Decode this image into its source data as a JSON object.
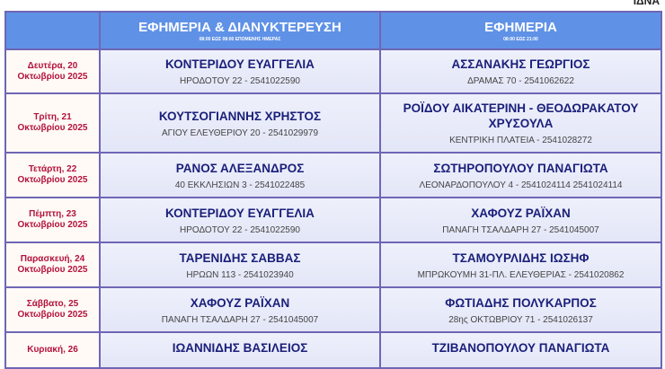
{
  "logo_text": "ΙΔΝΑ",
  "header": {
    "col1": {
      "title": "ΕΦΗΜΕΡΙΑ & ΔΙΑΝΥΚΤΕΡΕΥΣΗ",
      "subtitle": "08:00 ΕΩΣ 08:00 ΕΠΟΜΕΝΗΣ ΗΜΕΡΑΣ"
    },
    "col2": {
      "title": "ΕΦΗΜΕΡΙΑ",
      "subtitle": "08:00 ΕΩΣ 21:00"
    }
  },
  "rows": [
    {
      "day": "Δευτέρα, 20",
      "month": "Οκτωβρίου 2025",
      "n1": "ΚΟΝΤΕΡΙΔΟΥ ΕΥΑΓΓΕΛΙΑ",
      "a1": "ΗΡΟΔΟΤΟΥ 22 - 2541022590",
      "n2": "ΑΣΣΑΝΑΚΗΣ ΓΕΩΡΓΙΟΣ",
      "a2": "ΔΡΑΜΑΣ 70 - 2541062622"
    },
    {
      "day": "Τρίτη, 21",
      "month": "Οκτωβρίου 2025",
      "n1": "ΚΟΥΤΣΟΓΙΑΝΝΗΣ ΧΡΗΣΤΟΣ",
      "a1": "ΑΓΙΟΥ ΕΛΕΥΘΕΡΙΟΥ 20 - 2541029979",
      "n2": "ΡΟΪΔΟΥ ΑΙΚΑΤΕΡΙΝΗ - ΘΕΟΔΩΡΑΚΑΤΟΥ ΧΡΥΣΟΥΛΑ",
      "a2": "ΚΕΝΤΡΙΚΗ ΠΛΑΤΕΙΑ - 2541028272"
    },
    {
      "day": "Τετάρτη, 22",
      "month": "Οκτωβρίου 2025",
      "n1": "ΡΑΝΟΣ ΑΛΕΞΑΝΔΡΟΣ",
      "a1": "40 ΕΚΚΛΗΣΙΩΝ 3 - 2541022485",
      "n2": "ΣΩΤΗΡΟΠΟΥΛΟΥ ΠΑΝΑΓΙΩΤΑ",
      "a2": "ΛΕΟΝΑΡΔΟΠΟΥΛΟΥ 4 - 2541024114 2541024114"
    },
    {
      "day": "Πέμπτη, 23",
      "month": "Οκτωβρίου 2025",
      "n1": "ΚΟΝΤΕΡΙΔΟΥ ΕΥΑΓΓΕΛΙΑ",
      "a1": "ΗΡΟΔΟΤΟΥ 22 - 2541022590",
      "n2": "ΧΑΦΟΥΖ ΡΑΪΧΑΝ",
      "a2": "ΠΑΝΑΓΗ ΤΣΑΛΔΑΡΗ 27 - 2541045007"
    },
    {
      "day": "Παρασκευή, 24",
      "month": "Οκτωβρίου 2025",
      "n1": "ΤΑΡΕΝΙΔΗΣ ΣΑΒΒΑΣ",
      "a1": "ΗΡΩΩΝ 113 - 2541023940",
      "n2": "ΤΣΑΜΟΥΡΛΙΔΗΣ ΙΩΣΗΦ",
      "a2": "ΜΠΡΩΚΟΥΜΗ 31-ΠΛ. ΕΛΕΥΘΕΡΙΑΣ - 2541020862"
    },
    {
      "day": "Σάββατο, 25",
      "month": "Οκτωβρίου 2025",
      "n1": "ΧΑΦΟΥΖ ΡΑΪΧΑΝ",
      "a1": "ΠΑΝΑΓΗ ΤΣΑΛΔΑΡΗ 27 - 2541045007",
      "n2": "ΦΩΤΙΑΔΗΣ ΠΟΛΥΚΑΡΠΟΣ",
      "a2": "28ης ΟΚΤΩΒΡΙΟΥ 71 - 2541026137"
    },
    {
      "day": "Κυριακή, 26",
      "month": "",
      "n1": "ΙΩΑΝΝΙΔΗΣ ΒΑΣΙΛΕΙΟΣ",
      "a1": "",
      "n2": "ΤΖΙΒΑΝΟΠΟΥΛΟΥ ΠΑΝΑΓΙΩΤΑ",
      "a2": ""
    }
  ]
}
